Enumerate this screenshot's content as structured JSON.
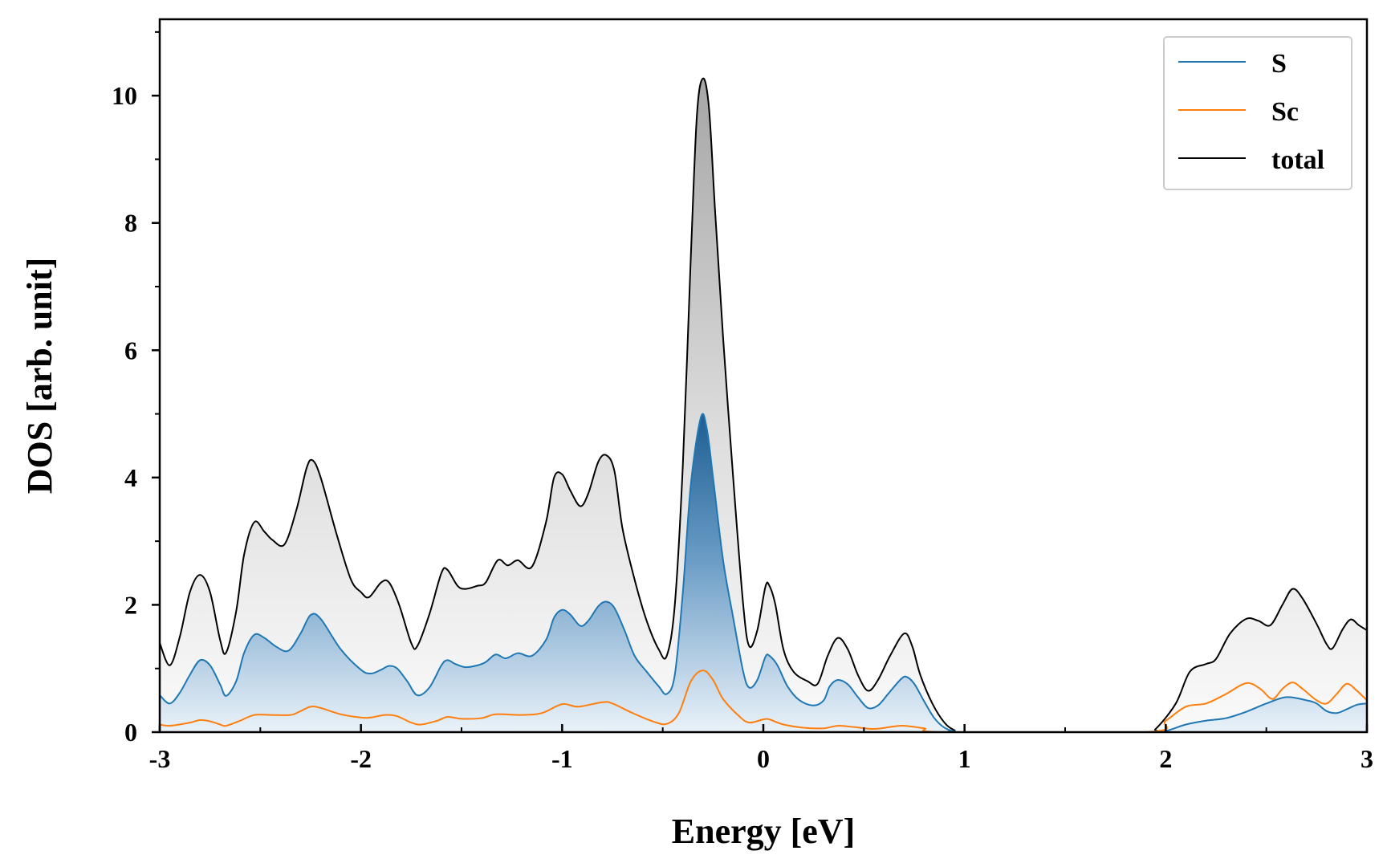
{
  "chart_data": {
    "type": "line",
    "title": "",
    "xlabel": "Energy [eV]",
    "ylabel": "DOS [arb. unit]",
    "xlim": [
      -3,
      3
    ],
    "ylim": [
      0,
      11.2
    ],
    "x_ticks": [
      -3,
      -2,
      -1,
      0,
      1,
      2,
      3
    ],
    "x_tick_labels": [
      "-3",
      "-2",
      "-1",
      "0",
      "1",
      "2",
      "3"
    ],
    "y_ticks": [
      0,
      2,
      4,
      6,
      8,
      10
    ],
    "y_tick_labels": [
      "0",
      "2",
      "4",
      "6",
      "8",
      "10"
    ],
    "grid": false,
    "legend_position": "top-right",
    "series": [
      {
        "name": "S",
        "color": "#1f77b4",
        "fill": "blue-gradient",
        "points": [
          [
            -3.0,
            0.58
          ],
          [
            -2.95,
            0.45
          ],
          [
            -2.9,
            0.62
          ],
          [
            -2.85,
            0.9
          ],
          [
            -2.8,
            1.13
          ],
          [
            -2.75,
            1.05
          ],
          [
            -2.7,
            0.75
          ],
          [
            -2.67,
            0.57
          ],
          [
            -2.62,
            0.8
          ],
          [
            -2.58,
            1.25
          ],
          [
            -2.53,
            1.53
          ],
          [
            -2.48,
            1.48
          ],
          [
            -2.42,
            1.34
          ],
          [
            -2.36,
            1.28
          ],
          [
            -2.3,
            1.55
          ],
          [
            -2.25,
            1.84
          ],
          [
            -2.2,
            1.78
          ],
          [
            -2.1,
            1.3
          ],
          [
            -2.0,
            0.98
          ],
          [
            -1.95,
            0.92
          ],
          [
            -1.9,
            0.98
          ],
          [
            -1.86,
            1.04
          ],
          [
            -1.82,
            1.0
          ],
          [
            -1.77,
            0.8
          ],
          [
            -1.72,
            0.58
          ],
          [
            -1.66,
            0.7
          ],
          [
            -1.6,
            1.05
          ],
          [
            -1.57,
            1.13
          ],
          [
            -1.53,
            1.07
          ],
          [
            -1.48,
            1.02
          ],
          [
            -1.42,
            1.05
          ],
          [
            -1.38,
            1.1
          ],
          [
            -1.33,
            1.22
          ],
          [
            -1.28,
            1.16
          ],
          [
            -1.22,
            1.24
          ],
          [
            -1.15,
            1.2
          ],
          [
            -1.08,
            1.45
          ],
          [
            -1.04,
            1.8
          ],
          [
            -1.0,
            1.92
          ],
          [
            -0.96,
            1.85
          ],
          [
            -0.91,
            1.67
          ],
          [
            -0.87,
            1.75
          ],
          [
            -0.82,
            1.98
          ],
          [
            -0.78,
            2.05
          ],
          [
            -0.74,
            1.95
          ],
          [
            -0.69,
            1.6
          ],
          [
            -0.64,
            1.2
          ],
          [
            -0.58,
            0.95
          ],
          [
            -0.52,
            0.72
          ],
          [
            -0.48,
            0.6
          ],
          [
            -0.44,
            0.9
          ],
          [
            -0.4,
            2.2
          ],
          [
            -0.36,
            3.9
          ],
          [
            -0.31,
            4.95
          ],
          [
            -0.28,
            4.75
          ],
          [
            -0.25,
            4.0
          ],
          [
            -0.2,
            2.7
          ],
          [
            -0.15,
            1.8
          ],
          [
            -0.1,
            0.95
          ],
          [
            -0.07,
            0.7
          ],
          [
            -0.03,
            0.82
          ],
          [
            0.01,
            1.18
          ],
          [
            0.03,
            1.2
          ],
          [
            0.07,
            1.05
          ],
          [
            0.12,
            0.72
          ],
          [
            0.18,
            0.5
          ],
          [
            0.25,
            0.42
          ],
          [
            0.3,
            0.5
          ],
          [
            0.33,
            0.72
          ],
          [
            0.37,
            0.82
          ],
          [
            0.42,
            0.75
          ],
          [
            0.47,
            0.55
          ],
          [
            0.52,
            0.38
          ],
          [
            0.57,
            0.42
          ],
          [
            0.62,
            0.6
          ],
          [
            0.68,
            0.82
          ],
          [
            0.71,
            0.87
          ],
          [
            0.75,
            0.76
          ],
          [
            0.8,
            0.48
          ],
          [
            0.85,
            0.22
          ],
          [
            0.9,
            0.07
          ],
          [
            0.95,
            0.01
          ],
          [
            1.0,
            0.0
          ],
          [
            1.9,
            0.0
          ],
          [
            2.0,
            0.02
          ],
          [
            2.1,
            0.12
          ],
          [
            2.2,
            0.18
          ],
          [
            2.3,
            0.22
          ],
          [
            2.4,
            0.32
          ],
          [
            2.5,
            0.45
          ],
          [
            2.6,
            0.55
          ],
          [
            2.7,
            0.5
          ],
          [
            2.75,
            0.45
          ],
          [
            2.8,
            0.33
          ],
          [
            2.85,
            0.3
          ],
          [
            2.9,
            0.36
          ],
          [
            2.95,
            0.43
          ],
          [
            3.0,
            0.45
          ]
        ]
      },
      {
        "name": "Sc",
        "color": "#ff7f0e",
        "fill": "none",
        "points": [
          [
            -3.0,
            0.12
          ],
          [
            -2.95,
            0.1
          ],
          [
            -2.85,
            0.15
          ],
          [
            -2.8,
            0.19
          ],
          [
            -2.75,
            0.17
          ],
          [
            -2.7,
            0.12
          ],
          [
            -2.67,
            0.1
          ],
          [
            -2.6,
            0.18
          ],
          [
            -2.53,
            0.27
          ],
          [
            -2.45,
            0.27
          ],
          [
            -2.35,
            0.27
          ],
          [
            -2.3,
            0.33
          ],
          [
            -2.25,
            0.4
          ],
          [
            -2.2,
            0.38
          ],
          [
            -2.1,
            0.28
          ],
          [
            -2.0,
            0.23
          ],
          [
            -1.95,
            0.23
          ],
          [
            -1.88,
            0.27
          ],
          [
            -1.82,
            0.25
          ],
          [
            -1.75,
            0.15
          ],
          [
            -1.7,
            0.12
          ],
          [
            -1.62,
            0.18
          ],
          [
            -1.57,
            0.24
          ],
          [
            -1.5,
            0.21
          ],
          [
            -1.4,
            0.22
          ],
          [
            -1.33,
            0.28
          ],
          [
            -1.2,
            0.27
          ],
          [
            -1.1,
            0.3
          ],
          [
            -1.0,
            0.44
          ],
          [
            -0.92,
            0.4
          ],
          [
            -0.8,
            0.47
          ],
          [
            -0.75,
            0.45
          ],
          [
            -0.65,
            0.3
          ],
          [
            -0.55,
            0.17
          ],
          [
            -0.48,
            0.13
          ],
          [
            -0.42,
            0.3
          ],
          [
            -0.36,
            0.8
          ],
          [
            -0.3,
            0.97
          ],
          [
            -0.25,
            0.82
          ],
          [
            -0.2,
            0.52
          ],
          [
            -0.12,
            0.25
          ],
          [
            -0.07,
            0.15
          ],
          [
            0.0,
            0.2
          ],
          [
            0.03,
            0.2
          ],
          [
            0.1,
            0.12
          ],
          [
            0.2,
            0.07
          ],
          [
            0.3,
            0.06
          ],
          [
            0.37,
            0.1
          ],
          [
            0.45,
            0.08
          ],
          [
            0.55,
            0.05
          ],
          [
            0.65,
            0.09
          ],
          [
            0.7,
            0.1
          ],
          [
            0.8,
            0.06
          ],
          [
            0.9,
            0.0
          ],
          [
            1.9,
            0.0
          ],
          [
            2.0,
            0.18
          ],
          [
            2.1,
            0.4
          ],
          [
            2.2,
            0.45
          ],
          [
            2.3,
            0.6
          ],
          [
            2.4,
            0.77
          ],
          [
            2.47,
            0.68
          ],
          [
            2.53,
            0.52
          ],
          [
            2.58,
            0.68
          ],
          [
            2.63,
            0.78
          ],
          [
            2.68,
            0.68
          ],
          [
            2.75,
            0.5
          ],
          [
            2.8,
            0.45
          ],
          [
            2.85,
            0.6
          ],
          [
            2.9,
            0.76
          ],
          [
            2.95,
            0.65
          ],
          [
            3.0,
            0.5
          ]
        ]
      },
      {
        "name": "total",
        "color": "#000000",
        "fill": "grey-gradient",
        "points": [
          [
            -3.0,
            1.4
          ],
          [
            -2.95,
            1.05
          ],
          [
            -2.9,
            1.5
          ],
          [
            -2.85,
            2.2
          ],
          [
            -2.8,
            2.47
          ],
          [
            -2.75,
            2.2
          ],
          [
            -2.7,
            1.45
          ],
          [
            -2.67,
            1.25
          ],
          [
            -2.62,
            1.9
          ],
          [
            -2.58,
            2.8
          ],
          [
            -2.53,
            3.3
          ],
          [
            -2.48,
            3.15
          ],
          [
            -2.44,
            3.02
          ],
          [
            -2.38,
            2.95
          ],
          [
            -2.32,
            3.5
          ],
          [
            -2.27,
            4.15
          ],
          [
            -2.24,
            4.27
          ],
          [
            -2.2,
            4.0
          ],
          [
            -2.12,
            3.1
          ],
          [
            -2.05,
            2.4
          ],
          [
            -2.0,
            2.2
          ],
          [
            -1.96,
            2.12
          ],
          [
            -1.9,
            2.35
          ],
          [
            -1.86,
            2.35
          ],
          [
            -1.81,
            2.0
          ],
          [
            -1.75,
            1.4
          ],
          [
            -1.72,
            1.35
          ],
          [
            -1.66,
            1.85
          ],
          [
            -1.6,
            2.5
          ],
          [
            -1.57,
            2.55
          ],
          [
            -1.52,
            2.3
          ],
          [
            -1.48,
            2.25
          ],
          [
            -1.42,
            2.3
          ],
          [
            -1.38,
            2.35
          ],
          [
            -1.32,
            2.7
          ],
          [
            -1.27,
            2.62
          ],
          [
            -1.22,
            2.7
          ],
          [
            -1.15,
            2.6
          ],
          [
            -1.08,
            3.3
          ],
          [
            -1.04,
            4.0
          ],
          [
            -1.0,
            4.05
          ],
          [
            -0.96,
            3.8
          ],
          [
            -0.91,
            3.55
          ],
          [
            -0.87,
            3.75
          ],
          [
            -0.82,
            4.25
          ],
          [
            -0.78,
            4.35
          ],
          [
            -0.74,
            4.1
          ],
          [
            -0.7,
            3.2
          ],
          [
            -0.64,
            2.4
          ],
          [
            -0.58,
            1.75
          ],
          [
            -0.52,
            1.3
          ],
          [
            -0.48,
            1.2
          ],
          [
            -0.44,
            2.0
          ],
          [
            -0.4,
            4.2
          ],
          [
            -0.36,
            7.5
          ],
          [
            -0.33,
            9.7
          ],
          [
            -0.3,
            10.27
          ],
          [
            -0.27,
            9.8
          ],
          [
            -0.24,
            8.2
          ],
          [
            -0.2,
            6.2
          ],
          [
            -0.15,
            4.0
          ],
          [
            -0.1,
            2.0
          ],
          [
            -0.07,
            1.35
          ],
          [
            -0.03,
            1.6
          ],
          [
            0.01,
            2.28
          ],
          [
            0.03,
            2.3
          ],
          [
            0.06,
            2.0
          ],
          [
            0.1,
            1.3
          ],
          [
            0.15,
            0.95
          ],
          [
            0.22,
            0.8
          ],
          [
            0.27,
            0.76
          ],
          [
            0.32,
            1.2
          ],
          [
            0.37,
            1.48
          ],
          [
            0.42,
            1.3
          ],
          [
            0.47,
            0.9
          ],
          [
            0.52,
            0.65
          ],
          [
            0.57,
            0.82
          ],
          [
            0.63,
            1.2
          ],
          [
            0.7,
            1.55
          ],
          [
            0.74,
            1.35
          ],
          [
            0.78,
            0.9
          ],
          [
            0.84,
            0.45
          ],
          [
            0.9,
            0.15
          ],
          [
            0.95,
            0.03
          ],
          [
            1.0,
            0.0
          ],
          [
            1.9,
            0.0
          ],
          [
            1.95,
            0.05
          ],
          [
            2.05,
            0.45
          ],
          [
            2.12,
            0.95
          ],
          [
            2.2,
            1.07
          ],
          [
            2.25,
            1.15
          ],
          [
            2.32,
            1.55
          ],
          [
            2.4,
            1.78
          ],
          [
            2.46,
            1.75
          ],
          [
            2.52,
            1.68
          ],
          [
            2.58,
            2.0
          ],
          [
            2.63,
            2.25
          ],
          [
            2.68,
            2.1
          ],
          [
            2.75,
            1.7
          ],
          [
            2.8,
            1.38
          ],
          [
            2.83,
            1.32
          ],
          [
            2.88,
            1.62
          ],
          [
            2.92,
            1.77
          ],
          [
            2.96,
            1.68
          ],
          [
            3.0,
            1.6
          ]
        ]
      }
    ]
  }
}
